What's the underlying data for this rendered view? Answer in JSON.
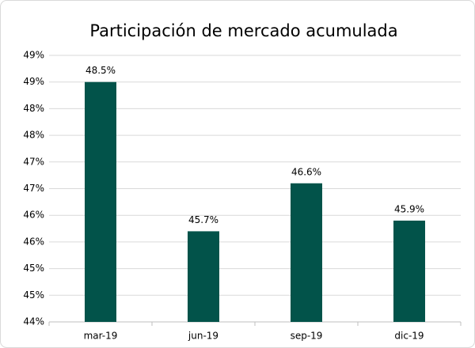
{
  "chart_data": {
    "type": "bar",
    "title": "Participación de mercado acumulada",
    "categories": [
      "mar-19",
      "jun-19",
      "sep-19",
      "dic-19"
    ],
    "values": [
      48.5,
      45.7,
      46.6,
      45.9
    ],
    "value_labels": [
      "48.5%",
      "45.7%",
      "46.6%",
      "45.9%"
    ],
    "color": "#02534a",
    "ylim": [
      44,
      49
    ],
    "yticks": [
      {
        "value": 44,
        "label": "44%"
      },
      {
        "value": 44.5,
        "label": "45%"
      },
      {
        "value": 45,
        "label": "45%"
      },
      {
        "value": 45.5,
        "label": "46%"
      },
      {
        "value": 46,
        "label": "46%"
      },
      {
        "value": 46.5,
        "label": "47%"
      },
      {
        "value": 47,
        "label": "47%"
      },
      {
        "value": 47.5,
        "label": "48%"
      },
      {
        "value": 48,
        "label": "48%"
      },
      {
        "value": 48.5,
        "label": "49%"
      },
      {
        "value": 49,
        "label": "49%"
      }
    ],
    "grid": true
  }
}
